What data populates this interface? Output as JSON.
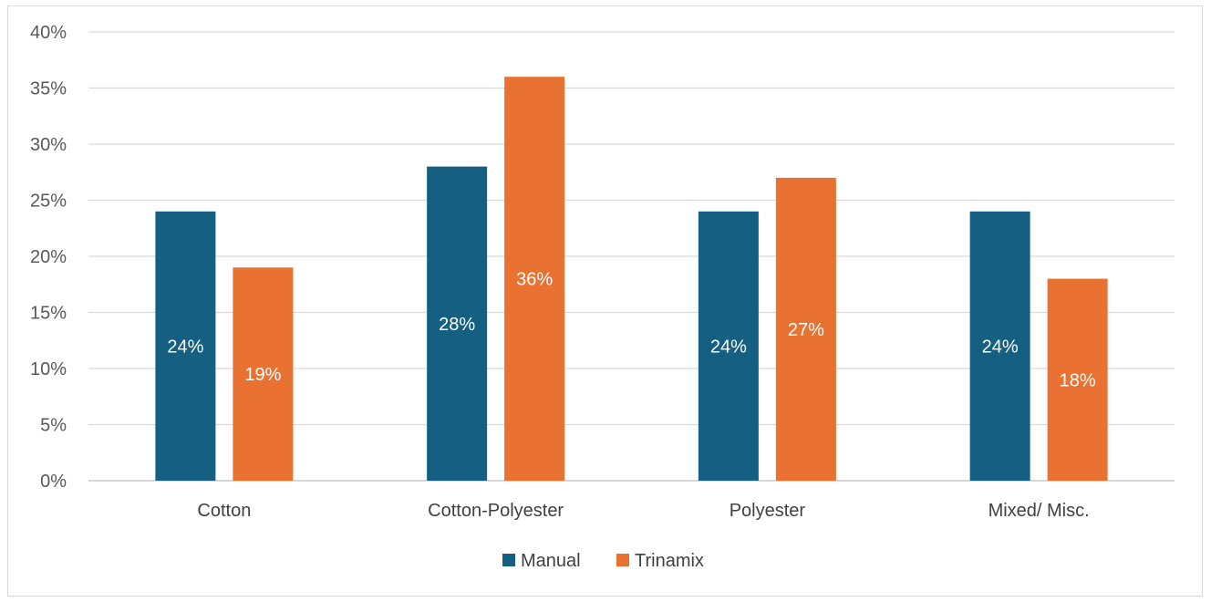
{
  "chart_data": {
    "type": "bar",
    "title": "",
    "xlabel": "",
    "ylabel": "",
    "categories": [
      "Cotton",
      "Cotton-Polyester",
      "Polyester",
      "Mixed/ Misc."
    ],
    "series": [
      {
        "name": "Manual",
        "color": "#156082",
        "values": [
          24,
          28,
          24,
          24
        ],
        "labels": [
          "24%",
          "28%",
          "24%",
          "24%"
        ]
      },
      {
        "name": "Trinamix",
        "color": "#E97132",
        "values": [
          19,
          36,
          27,
          18
        ],
        "labels": [
          "19%",
          "36%",
          "27%",
          "18%"
        ]
      }
    ],
    "ylim": [
      0,
      40
    ],
    "yticks": [
      0,
      5,
      10,
      15,
      20,
      25,
      30,
      35,
      40
    ],
    "ytick_labels": [
      "0%",
      "5%",
      "10%",
      "15%",
      "20%",
      "25%",
      "30%",
      "35%",
      "40%"
    ],
    "grid": true,
    "legend_position": "bottom"
  }
}
